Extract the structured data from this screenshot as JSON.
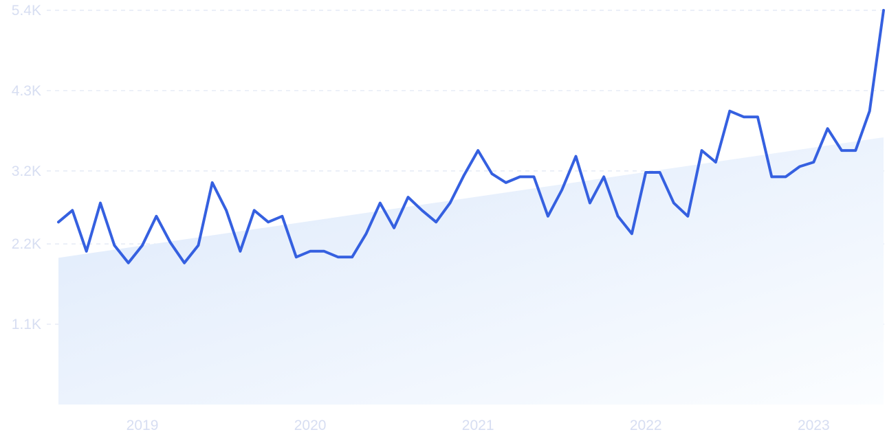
{
  "chart_data": {
    "type": "line",
    "title": "",
    "xlabel": "",
    "ylabel": "",
    "ylim": [
      0,
      5400
    ],
    "xlim": [
      "2018-07",
      "2023-06"
    ],
    "grid": true,
    "y_ticks": [
      {
        "value": 5400,
        "label": "5.4K"
      },
      {
        "value": 4300,
        "label": "4.3K"
      },
      {
        "value": 3200,
        "label": "3.2K"
      },
      {
        "value": 2200,
        "label": "2.2K"
      },
      {
        "value": 1100,
        "label": "1.1K"
      }
    ],
    "x_ticks": [
      {
        "value": "2019-01",
        "label": "2019"
      },
      {
        "value": "2020-01",
        "label": "2020"
      },
      {
        "value": "2021-01",
        "label": "2021"
      },
      {
        "value": "2022-01",
        "label": "2022"
      },
      {
        "value": "2023-01",
        "label": "2023"
      }
    ],
    "series": [
      {
        "type": "line",
        "color": "#3560e0",
        "x": [
          "2018-07",
          "2018-08",
          "2018-09",
          "2018-10",
          "2018-11",
          "2018-12",
          "2019-01",
          "2019-02",
          "2019-03",
          "2019-04",
          "2019-05",
          "2019-06",
          "2019-07",
          "2019-08",
          "2019-09",
          "2019-10",
          "2019-11",
          "2019-12",
          "2020-01",
          "2020-02",
          "2020-03",
          "2020-04",
          "2020-05",
          "2020-06",
          "2020-07",
          "2020-08",
          "2020-09",
          "2020-10",
          "2020-11",
          "2020-12",
          "2021-01",
          "2021-02",
          "2021-03",
          "2021-04",
          "2021-05",
          "2021-06",
          "2021-07",
          "2021-08",
          "2021-09",
          "2021-10",
          "2021-11",
          "2021-12",
          "2022-01",
          "2022-02",
          "2022-03",
          "2022-04",
          "2022-05",
          "2022-06",
          "2022-07",
          "2022-08",
          "2022-09",
          "2022-10",
          "2022-11",
          "2022-12",
          "2023-01",
          "2023-02",
          "2023-03",
          "2023-04",
          "2023-05",
          "2023-06"
        ],
        "values": [
          2500,
          2660,
          2100,
          2760,
          2180,
          1940,
          2180,
          2580,
          2220,
          1940,
          2180,
          3040,
          2660,
          2100,
          2660,
          2500,
          2580,
          2020,
          2100,
          2100,
          2020,
          2020,
          2340,
          2760,
          2420,
          2840,
          2660,
          2500,
          2760,
          3140,
          3480,
          3160,
          3040,
          3120,
          3120,
          2580,
          2940,
          3400,
          2760,
          3120,
          2580,
          2340,
          3180,
          3180,
          2760,
          2580,
          3480,
          3320,
          4020,
          3940,
          3940,
          3120,
          3120,
          3260,
          3320,
          3780,
          3480,
          3480,
          4020,
          5400
        ]
      },
      {
        "type": "area",
        "name": "",
        "color": "#e3edfb",
        "x": [
          "2018-07",
          "2023-06"
        ],
        "values": [
          2010,
          3660
        ]
      }
    ]
  }
}
